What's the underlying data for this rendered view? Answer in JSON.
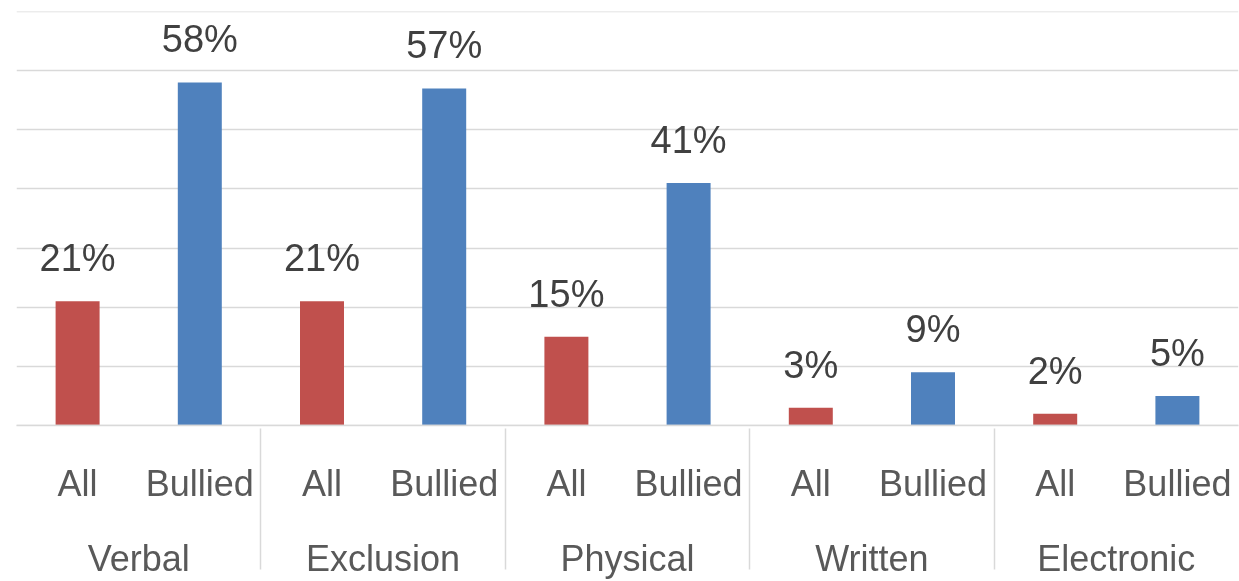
{
  "chart_data": {
    "type": "bar",
    "categories": [
      "Verbal",
      "Exclusion",
      "Physical",
      "Written",
      "Electronic"
    ],
    "series": [
      {
        "name": "All",
        "color": "#c0504d",
        "values": [
          21,
          21,
          15,
          3,
          2
        ],
        "value_labels": [
          "21%",
          "21%",
          "15%",
          "3%",
          "2%"
        ]
      },
      {
        "name": "Bullied",
        "color": "#4f81bd",
        "values": [
          58,
          57,
          41,
          9,
          5
        ],
        "value_labels": [
          "58%",
          "57%",
          "41%",
          "9%",
          "5%"
        ]
      }
    ],
    "ylim": [
      0,
      70
    ],
    "yticks": [
      {
        "value": 0,
        "label": null
      },
      {
        "value": 10,
        "label": null
      },
      {
        "value": 20,
        "label": null
      },
      {
        "value": 30,
        "label": null
      },
      {
        "value": 40,
        "label": null
      },
      {
        "value": 50,
        "label": null
      },
      {
        "value": 60,
        "label": null
      },
      {
        "value": 70,
        "label": null
      }
    ],
    "grid": "y",
    "tick_labels": "x"
  }
}
